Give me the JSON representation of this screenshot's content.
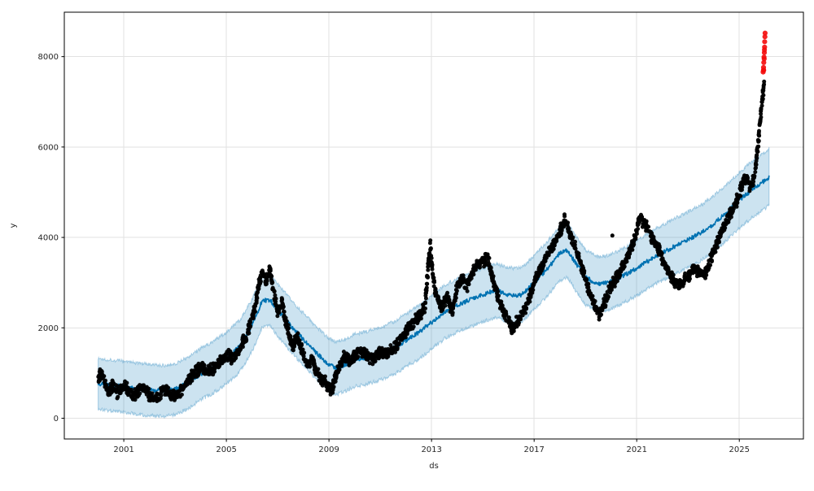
{
  "chart_data": {
    "type": "scatter",
    "title": "",
    "xlabel": "ds",
    "ylabel": "y",
    "x_ticks": [
      2001,
      2005,
      2009,
      2013,
      2017,
      2021,
      2025
    ],
    "x_tick_labels": [
      "2001",
      "2005",
      "2009",
      "2013",
      "2017",
      "2021",
      "2025"
    ],
    "y_ticks": [
      0,
      2000,
      4000,
      6000,
      8000
    ],
    "y_tick_labels": [
      "0",
      "2000",
      "4000",
      "6000",
      "8000"
    ],
    "xlim": [
      1998.68,
      2027.5
    ],
    "ylim": [
      -459,
      8983
    ],
    "grid": true,
    "legend_position": "none",
    "colors": {
      "observed": "#000000",
      "forecast_line": "#0072b2",
      "band_fill": "#0072b2",
      "band_alpha": 0.2,
      "band_edge_alpha": 0.3,
      "anomaly": "#f40b0b",
      "grid": "#e2e2e2",
      "spine": "#000000",
      "tick_text": "#262626",
      "background": "#ffffff"
    },
    "series": [
      {
        "name": "observed",
        "type": "scatter",
        "color": "#000000",
        "marker_radius_px": 2.5,
        "anchors": [
          [
            2000.0,
            850
          ],
          [
            2000.12,
            1000
          ],
          [
            2000.25,
            820
          ],
          [
            2000.4,
            620
          ],
          [
            2000.55,
            720
          ],
          [
            2000.75,
            560
          ],
          [
            2000.9,
            680
          ],
          [
            2001.05,
            730
          ],
          [
            2001.2,
            600
          ],
          [
            2001.35,
            480
          ],
          [
            2001.5,
            560
          ],
          [
            2001.65,
            680
          ],
          [
            2001.8,
            720
          ],
          [
            2001.95,
            560
          ],
          [
            2002.1,
            440
          ],
          [
            2002.25,
            420
          ],
          [
            2002.4,
            500
          ],
          [
            2002.55,
            640
          ],
          [
            2002.7,
            580
          ],
          [
            2002.85,
            520
          ],
          [
            2003.0,
            500
          ],
          [
            2003.15,
            580
          ],
          [
            2003.3,
            680
          ],
          [
            2003.5,
            820
          ],
          [
            2003.7,
            980
          ],
          [
            2003.9,
            1080
          ],
          [
            2004.1,
            1140
          ],
          [
            2004.3,
            1020
          ],
          [
            2004.5,
            1120
          ],
          [
            2004.7,
            1240
          ],
          [
            2004.9,
            1320
          ],
          [
            2005.1,
            1380
          ],
          [
            2005.3,
            1320
          ],
          [
            2005.5,
            1520
          ],
          [
            2005.7,
            1760
          ],
          [
            2005.9,
            2000
          ],
          [
            2006.1,
            2400
          ],
          [
            2006.25,
            2900
          ],
          [
            2006.4,
            3250
          ],
          [
            2006.55,
            3050
          ],
          [
            2006.7,
            3280
          ],
          [
            2006.85,
            2750
          ],
          [
            2007.0,
            2350
          ],
          [
            2007.15,
            2650
          ],
          [
            2007.3,
            2150
          ],
          [
            2007.45,
            1850
          ],
          [
            2007.6,
            1550
          ],
          [
            2007.75,
            1850
          ],
          [
            2007.9,
            1600
          ],
          [
            2008.05,
            1350
          ],
          [
            2008.2,
            1150
          ],
          [
            2008.35,
            1350
          ],
          [
            2008.5,
            1050
          ],
          [
            2008.65,
            900
          ],
          [
            2008.8,
            820
          ],
          [
            2009.0,
            680
          ],
          [
            2009.1,
            600
          ],
          [
            2009.25,
            900
          ],
          [
            2009.4,
            1150
          ],
          [
            2009.6,
            1350
          ],
          [
            2009.8,
            1280
          ],
          [
            2010.0,
            1380
          ],
          [
            2010.25,
            1480
          ],
          [
            2010.5,
            1380
          ],
          [
            2010.75,
            1300
          ],
          [
            2011.0,
            1500
          ],
          [
            2011.25,
            1420
          ],
          [
            2011.5,
            1550
          ],
          [
            2011.75,
            1700
          ],
          [
            2012.0,
            1920
          ],
          [
            2012.25,
            2080
          ],
          [
            2012.5,
            2220
          ],
          [
            2012.75,
            2500
          ],
          [
            2012.88,
            3450
          ],
          [
            2012.95,
            3820
          ],
          [
            2013.05,
            3150
          ],
          [
            2013.2,
            2650
          ],
          [
            2013.4,
            2480
          ],
          [
            2013.6,
            2700
          ],
          [
            2013.8,
            2350
          ],
          [
            2014.0,
            2900
          ],
          [
            2014.2,
            3080
          ],
          [
            2014.4,
            2950
          ],
          [
            2014.6,
            3280
          ],
          [
            2014.8,
            3400
          ],
          [
            2015.0,
            3480
          ],
          [
            2015.2,
            3550
          ],
          [
            2015.35,
            3150
          ],
          [
            2015.55,
            2750
          ],
          [
            2015.75,
            2450
          ],
          [
            2015.95,
            2200
          ],
          [
            2016.15,
            1950
          ],
          [
            2016.35,
            2150
          ],
          [
            2016.55,
            2350
          ],
          [
            2016.75,
            2550
          ],
          [
            2016.95,
            2900
          ],
          [
            2017.1,
            3150
          ],
          [
            2017.3,
            3350
          ],
          [
            2017.5,
            3600
          ],
          [
            2017.7,
            3800
          ],
          [
            2017.9,
            4000
          ],
          [
            2018.1,
            4250
          ],
          [
            2018.2,
            4400
          ],
          [
            2018.35,
            4150
          ],
          [
            2018.55,
            3850
          ],
          [
            2018.75,
            3550
          ],
          [
            2018.95,
            3200
          ],
          [
            2019.15,
            2800
          ],
          [
            2019.35,
            2500
          ],
          [
            2019.55,
            2300
          ],
          [
            2019.75,
            2550
          ],
          [
            2019.95,
            2850
          ],
          [
            2020.15,
            3050
          ],
          [
            2020.35,
            3250
          ],
          [
            2020.55,
            3450
          ],
          [
            2020.75,
            3700
          ],
          [
            2020.95,
            4000
          ],
          [
            2021.1,
            4450
          ],
          [
            2021.25,
            4350
          ],
          [
            2021.45,
            4150
          ],
          [
            2021.65,
            3950
          ],
          [
            2021.85,
            3750
          ],
          [
            2022.05,
            3450
          ],
          [
            2022.25,
            3200
          ],
          [
            2022.45,
            3050
          ],
          [
            2022.65,
            2950
          ],
          [
            2022.85,
            3050
          ],
          [
            2023.05,
            3150
          ],
          [
            2023.25,
            3300
          ],
          [
            2023.45,
            3250
          ],
          [
            2023.65,
            3150
          ],
          [
            2023.85,
            3450
          ],
          [
            2024.05,
            3750
          ],
          [
            2024.25,
            4050
          ],
          [
            2024.45,
            4300
          ],
          [
            2024.65,
            4550
          ],
          [
            2024.85,
            4750
          ],
          [
            2025.0,
            4950
          ],
          [
            2025.15,
            5250
          ],
          [
            2025.3,
            5350
          ],
          [
            2025.42,
            5100
          ],
          [
            2025.55,
            5250
          ],
          [
            2025.65,
            5650
          ],
          [
            2025.75,
            6150
          ],
          [
            2025.83,
            6700
          ],
          [
            2025.9,
            7100
          ],
          [
            2025.97,
            7400
          ]
        ],
        "extra_points": [
          [
            2020.05,
            4040
          ]
        ]
      },
      {
        "name": "forecast",
        "type": "line",
        "color": "#0072b2",
        "x_start": 2000.0,
        "x_end": 2026.17,
        "anchors": [
          [
            2000.0,
            760
          ],
          [
            2000.5,
            730
          ],
          [
            2001.0,
            700
          ],
          [
            2001.5,
            660
          ],
          [
            2002.0,
            620
          ],
          [
            2002.5,
            600
          ],
          [
            2003.0,
            640
          ],
          [
            2003.5,
            780
          ],
          [
            2004.0,
            980
          ],
          [
            2004.5,
            1130
          ],
          [
            2005.0,
            1330
          ],
          [
            2005.5,
            1580
          ],
          [
            2006.0,
            2050
          ],
          [
            2006.4,
            2600
          ],
          [
            2006.7,
            2620
          ],
          [
            2007.0,
            2400
          ],
          [
            2007.5,
            2050
          ],
          [
            2008.0,
            1750
          ],
          [
            2008.5,
            1450
          ],
          [
            2009.0,
            1180
          ],
          [
            2009.3,
            1100
          ],
          [
            2009.7,
            1200
          ],
          [
            2010.0,
            1280
          ],
          [
            2010.5,
            1340
          ],
          [
            2011.0,
            1430
          ],
          [
            2011.5,
            1540
          ],
          [
            2012.0,
            1720
          ],
          [
            2012.5,
            1900
          ],
          [
            2013.0,
            2120
          ],
          [
            2013.5,
            2350
          ],
          [
            2014.0,
            2500
          ],
          [
            2014.5,
            2620
          ],
          [
            2015.0,
            2730
          ],
          [
            2015.5,
            2830
          ],
          [
            2016.0,
            2730
          ],
          [
            2016.5,
            2720
          ],
          [
            2017.0,
            3000
          ],
          [
            2017.5,
            3300
          ],
          [
            2018.0,
            3650
          ],
          [
            2018.3,
            3720
          ],
          [
            2018.6,
            3450
          ],
          [
            2019.0,
            3120
          ],
          [
            2019.5,
            2960
          ],
          [
            2020.0,
            3020
          ],
          [
            2020.5,
            3160
          ],
          [
            2021.0,
            3320
          ],
          [
            2021.5,
            3500
          ],
          [
            2022.0,
            3660
          ],
          [
            2022.5,
            3810
          ],
          [
            2023.0,
            3950
          ],
          [
            2023.5,
            4100
          ],
          [
            2024.0,
            4300
          ],
          [
            2024.5,
            4560
          ],
          [
            2025.0,
            4820
          ],
          [
            2025.5,
            5060
          ],
          [
            2026.0,
            5260
          ],
          [
            2026.17,
            5350
          ]
        ]
      },
      {
        "name": "uncertainty",
        "type": "band",
        "follows": "forecast",
        "x_start": 2000.0,
        "x_end": 2026.17,
        "halfwidth_start": 560,
        "halfwidth_end": 620
      },
      {
        "name": "anomalies",
        "type": "scatter",
        "color": "#f40b0b",
        "marker_radius_px": 3.1,
        "points": [
          [
            2025.93,
            7660
          ],
          [
            2025.94,
            7700
          ],
          [
            2025.945,
            7760
          ],
          [
            2025.95,
            7700
          ],
          [
            2025.955,
            7870
          ],
          [
            2025.965,
            7990
          ],
          [
            2025.97,
            7950
          ],
          [
            2025.975,
            8090
          ],
          [
            2025.98,
            8150
          ],
          [
            2025.985,
            8210
          ],
          [
            2025.99,
            8330
          ],
          [
            2026.0,
            8440
          ],
          [
            2026.005,
            8520
          ]
        ]
      }
    ]
  }
}
